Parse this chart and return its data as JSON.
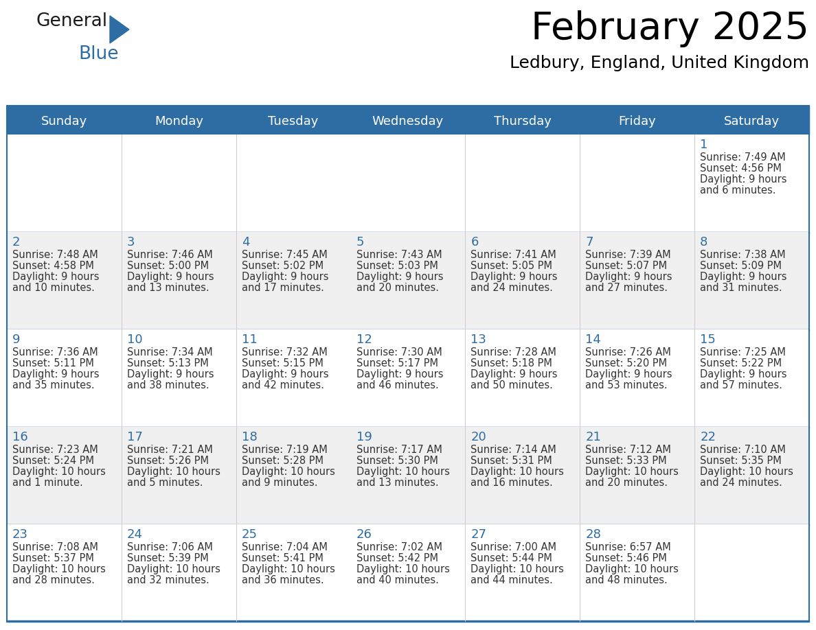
{
  "title": "February 2025",
  "subtitle": "Ledbury, England, United Kingdom",
  "header_bg": "#2E6DA4",
  "header_text_color": "#FFFFFF",
  "cell_bg_white": "#FFFFFF",
  "cell_bg_gray": "#F0F0F0",
  "day_number_color": "#2E6DA4",
  "body_text_color": "#333333",
  "separator_color": "#2E6DA4",
  "days_of_week": [
    "Sunday",
    "Monday",
    "Tuesday",
    "Wednesday",
    "Thursday",
    "Friday",
    "Saturday"
  ],
  "logo_general_color": "#1a1a1a",
  "logo_blue_color": "#2E6DA4",
  "calendar_data": [
    [
      null,
      null,
      null,
      null,
      null,
      null,
      {
        "day": 1,
        "sunrise": "7:49 AM",
        "sunset": "4:56 PM",
        "daylight_line1": "Daylight: 9 hours",
        "daylight_line2": "and 6 minutes."
      }
    ],
    [
      {
        "day": 2,
        "sunrise": "7:48 AM",
        "sunset": "4:58 PM",
        "daylight_line1": "Daylight: 9 hours",
        "daylight_line2": "and 10 minutes."
      },
      {
        "day": 3,
        "sunrise": "7:46 AM",
        "sunset": "5:00 PM",
        "daylight_line1": "Daylight: 9 hours",
        "daylight_line2": "and 13 minutes."
      },
      {
        "day": 4,
        "sunrise": "7:45 AM",
        "sunset": "5:02 PM",
        "daylight_line1": "Daylight: 9 hours",
        "daylight_line2": "and 17 minutes."
      },
      {
        "day": 5,
        "sunrise": "7:43 AM",
        "sunset": "5:03 PM",
        "daylight_line1": "Daylight: 9 hours",
        "daylight_line2": "and 20 minutes."
      },
      {
        "day": 6,
        "sunrise": "7:41 AM",
        "sunset": "5:05 PM",
        "daylight_line1": "Daylight: 9 hours",
        "daylight_line2": "and 24 minutes."
      },
      {
        "day": 7,
        "sunrise": "7:39 AM",
        "sunset": "5:07 PM",
        "daylight_line1": "Daylight: 9 hours",
        "daylight_line2": "and 27 minutes."
      },
      {
        "day": 8,
        "sunrise": "7:38 AM",
        "sunset": "5:09 PM",
        "daylight_line1": "Daylight: 9 hours",
        "daylight_line2": "and 31 minutes."
      }
    ],
    [
      {
        "day": 9,
        "sunrise": "7:36 AM",
        "sunset": "5:11 PM",
        "daylight_line1": "Daylight: 9 hours",
        "daylight_line2": "and 35 minutes."
      },
      {
        "day": 10,
        "sunrise": "7:34 AM",
        "sunset": "5:13 PM",
        "daylight_line1": "Daylight: 9 hours",
        "daylight_line2": "and 38 minutes."
      },
      {
        "day": 11,
        "sunrise": "7:32 AM",
        "sunset": "5:15 PM",
        "daylight_line1": "Daylight: 9 hours",
        "daylight_line2": "and 42 minutes."
      },
      {
        "day": 12,
        "sunrise": "7:30 AM",
        "sunset": "5:17 PM",
        "daylight_line1": "Daylight: 9 hours",
        "daylight_line2": "and 46 minutes."
      },
      {
        "day": 13,
        "sunrise": "7:28 AM",
        "sunset": "5:18 PM",
        "daylight_line1": "Daylight: 9 hours",
        "daylight_line2": "and 50 minutes."
      },
      {
        "day": 14,
        "sunrise": "7:26 AM",
        "sunset": "5:20 PM",
        "daylight_line1": "Daylight: 9 hours",
        "daylight_line2": "and 53 minutes."
      },
      {
        "day": 15,
        "sunrise": "7:25 AM",
        "sunset": "5:22 PM",
        "daylight_line1": "Daylight: 9 hours",
        "daylight_line2": "and 57 minutes."
      }
    ],
    [
      {
        "day": 16,
        "sunrise": "7:23 AM",
        "sunset": "5:24 PM",
        "daylight_line1": "Daylight: 10 hours",
        "daylight_line2": "and 1 minute."
      },
      {
        "day": 17,
        "sunrise": "7:21 AM",
        "sunset": "5:26 PM",
        "daylight_line1": "Daylight: 10 hours",
        "daylight_line2": "and 5 minutes."
      },
      {
        "day": 18,
        "sunrise": "7:19 AM",
        "sunset": "5:28 PM",
        "daylight_line1": "Daylight: 10 hours",
        "daylight_line2": "and 9 minutes."
      },
      {
        "day": 19,
        "sunrise": "7:17 AM",
        "sunset": "5:30 PM",
        "daylight_line1": "Daylight: 10 hours",
        "daylight_line2": "and 13 minutes."
      },
      {
        "day": 20,
        "sunrise": "7:14 AM",
        "sunset": "5:31 PM",
        "daylight_line1": "Daylight: 10 hours",
        "daylight_line2": "and 16 minutes."
      },
      {
        "day": 21,
        "sunrise": "7:12 AM",
        "sunset": "5:33 PM",
        "daylight_line1": "Daylight: 10 hours",
        "daylight_line2": "and 20 minutes."
      },
      {
        "day": 22,
        "sunrise": "7:10 AM",
        "sunset": "5:35 PM",
        "daylight_line1": "Daylight: 10 hours",
        "daylight_line2": "and 24 minutes."
      }
    ],
    [
      {
        "day": 23,
        "sunrise": "7:08 AM",
        "sunset": "5:37 PM",
        "daylight_line1": "Daylight: 10 hours",
        "daylight_line2": "and 28 minutes."
      },
      {
        "day": 24,
        "sunrise": "7:06 AM",
        "sunset": "5:39 PM",
        "daylight_line1": "Daylight: 10 hours",
        "daylight_line2": "and 32 minutes."
      },
      {
        "day": 25,
        "sunrise": "7:04 AM",
        "sunset": "5:41 PM",
        "daylight_line1": "Daylight: 10 hours",
        "daylight_line2": "and 36 minutes."
      },
      {
        "day": 26,
        "sunrise": "7:02 AM",
        "sunset": "5:42 PM",
        "daylight_line1": "Daylight: 10 hours",
        "daylight_line2": "and 40 minutes."
      },
      {
        "day": 27,
        "sunrise": "7:00 AM",
        "sunset": "5:44 PM",
        "daylight_line1": "Daylight: 10 hours",
        "daylight_line2": "and 44 minutes."
      },
      {
        "day": 28,
        "sunrise": "6:57 AM",
        "sunset": "5:46 PM",
        "daylight_line1": "Daylight: 10 hours",
        "daylight_line2": "and 48 minutes."
      },
      null
    ]
  ]
}
